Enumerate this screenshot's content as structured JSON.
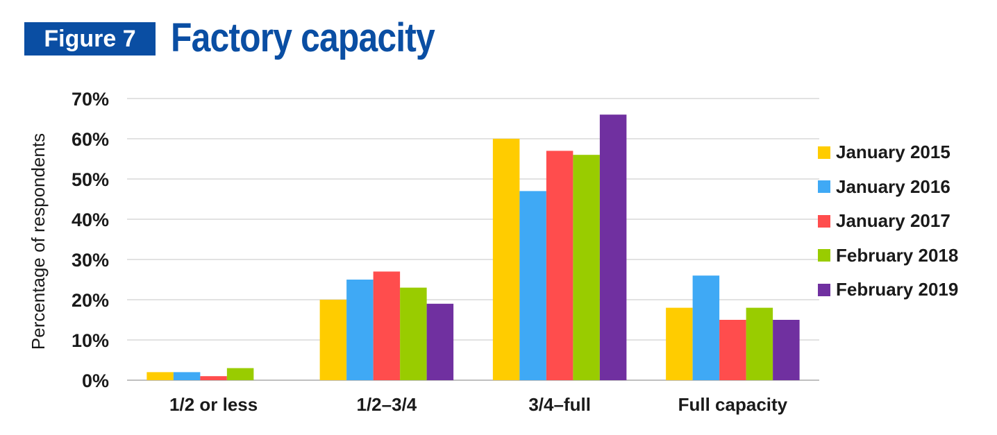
{
  "header": {
    "figure_label": "Figure 7",
    "title": "Factory capacity"
  },
  "chart_data": {
    "type": "bar",
    "title": "Factory capacity",
    "xlabel": "",
    "ylabel": "Percentage of respondents",
    "ylim": [
      0,
      70
    ],
    "yticks": [
      "0%",
      "10%",
      "20%",
      "30%",
      "40%",
      "50%",
      "60%",
      "70%"
    ],
    "categories": [
      "1/2 or less",
      "1/2–3/4",
      "3/4–full",
      "Full capacity"
    ],
    "series": [
      {
        "name": "January 2015",
        "color": "#ffcc00",
        "values": [
          2,
          20,
          60,
          18
        ]
      },
      {
        "name": "January 2016",
        "color": "#3fa9f5",
        "values": [
          2,
          25,
          47,
          26
        ]
      },
      {
        "name": "January 2017",
        "color": "#ff4d4d",
        "values": [
          1,
          27,
          57,
          15
        ]
      },
      {
        "name": "February 2018",
        "color": "#99cc00",
        "values": [
          3,
          23,
          56,
          18
        ]
      },
      {
        "name": "February 2019",
        "color": "#7030a0",
        "values": [
          0,
          19,
          66,
          15
        ]
      }
    ],
    "grid": true,
    "legend_position": "right"
  }
}
